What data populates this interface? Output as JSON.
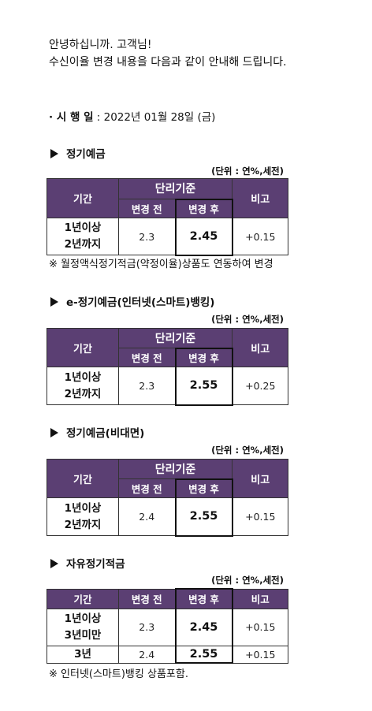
{
  "greeting": {
    "line1": "안녕하십니까. 고객님!",
    "line2": "수신이율 변경 내용을 다음과 같이 안내해 드립니다."
  },
  "date": {
    "label": "· 시 행 일",
    "value": " : 2022년 01월 28일 (금)"
  },
  "unit": "(단위 : 연%,세전)",
  "headers": {
    "period": "기간",
    "simple": "단리기준",
    "before": "변경 전",
    "after": "변경 후",
    "note": "비고"
  },
  "sections": [
    {
      "title": "정기예금",
      "rows": [
        {
          "period": "1년이상\n2년까지",
          "before": "2.3",
          "after": "2.45",
          "diff": "+0.15"
        }
      ],
      "footnote": "※ 월정액식정기적금(약정이율)상품도 연동하여 변경"
    },
    {
      "title": "e-정기예금(인터넷(스마트)뱅킹)",
      "rows": [
        {
          "period": "1년이상\n2년까지",
          "before": "2.3",
          "after": "2.55",
          "diff": "+0.25"
        }
      ]
    },
    {
      "title": "정기예금(비대면)",
      "rows": [
        {
          "period": "1년이상\n2년까지",
          "before": "2.4",
          "after": "2.55",
          "diff": "+0.15"
        }
      ]
    },
    {
      "title": "자유정기적금",
      "rows": [
        {
          "period": "1년이상\n3년미만",
          "before": "2.3",
          "after": "2.45",
          "diff": "+0.15"
        },
        {
          "period": "3년",
          "before": "2.4",
          "after": "2.55",
          "diff": "+0.15"
        }
      ],
      "footnote": "※ 인터넷(스마트)뱅킹 상품포함."
    }
  ]
}
